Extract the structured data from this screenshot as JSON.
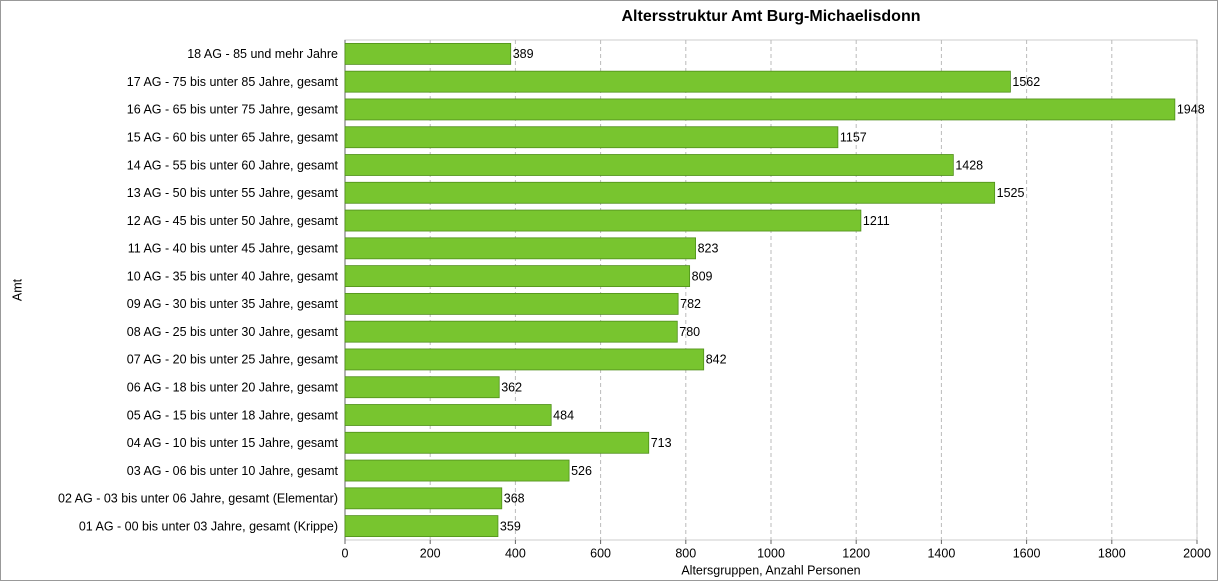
{
  "chart_data": {
    "type": "bar",
    "orientation": "horizontal",
    "title": "Altersstruktur Amt Burg-Michaelisdonn",
    "x_label": "Altersgruppen, Anzahl Personen",
    "y_label": "Amt",
    "categories": [
      "18 AG - 85 und mehr Jahre",
      "17 AG - 75 bis unter 85 Jahre, gesamt",
      "16 AG - 65 bis unter 75 Jahre, gesamt",
      "15 AG - 60 bis unter 65 Jahre, gesamt",
      "14 AG - 55 bis unter 60 Jahre, gesamt",
      "13 AG - 50 bis unter 55 Jahre, gesamt",
      "12 AG - 45 bis unter 50 Jahre, gesamt",
      "11 AG - 40 bis unter 45 Jahre, gesamt",
      "10 AG - 35 bis unter 40 Jahre, gesamt",
      "09 AG - 30 bis unter 35 Jahre, gesamt",
      "08 AG - 25 bis unter 30 Jahre, gesamt",
      "07 AG - 20 bis unter 25 Jahre, gesamt",
      "06 AG - 18 bis unter 20 Jahre, gesamt",
      "05 AG - 15 bis unter 18 Jahre, gesamt",
      "04 AG - 10 bis unter 15 Jahre, gesamt",
      "03 AG - 06 bis unter 10 Jahre, gesamt",
      "02 AG - 03 bis unter 06 Jahre, gesamt (Elementar)",
      "01 AG - 00 bis unter 03 Jahre, gesamt (Krippe)"
    ],
    "values": [
      389,
      1562,
      1948,
      1157,
      1428,
      1525,
      1211,
      823,
      809,
      782,
      780,
      842,
      362,
      484,
      713,
      526,
      368,
      359
    ],
    "color": "#78c52f",
    "xlim": [
      0,
      2000
    ],
    "xticks": [
      0,
      200,
      400,
      600,
      800,
      1000,
      1200,
      1400,
      1600,
      1800,
      2000
    ],
    "grid": true
  }
}
